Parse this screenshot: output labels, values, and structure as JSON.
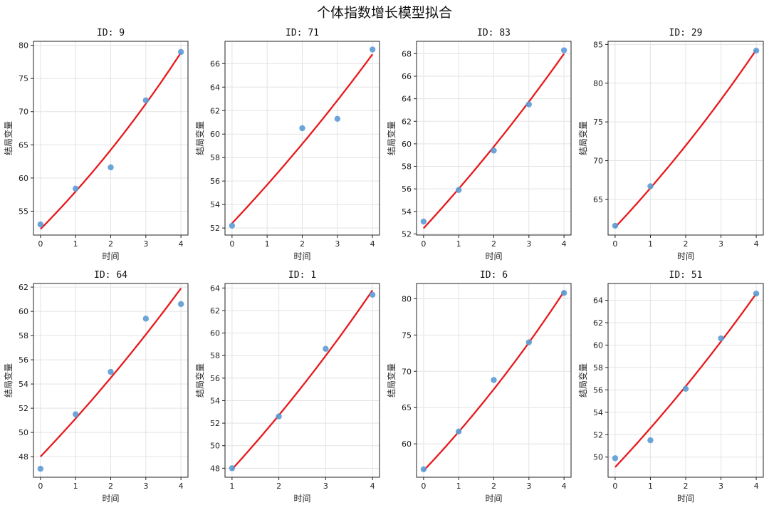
{
  "figure": {
    "title": "个体指数增长模型拟合"
  },
  "chart_data": [
    {
      "type": "scatter",
      "title": "ID: 9",
      "xlabel": "时间",
      "ylabel": "结局变量",
      "xlim": [
        -0.2,
        4.2
      ],
      "ylim": [
        51.4,
        80.6
      ],
      "xticks": [
        0,
        1,
        2,
        3,
        4
      ],
      "yticks": [
        55,
        60,
        65,
        70,
        75,
        80
      ],
      "points": {
        "x": [
          0,
          1,
          2,
          3,
          4
        ],
        "y": [
          53.0,
          58.4,
          61.6,
          71.7,
          79.0
        ]
      },
      "fit": {
        "x0": 0,
        "x1": 4,
        "y0": 52.3,
        "y1": 78.9
      }
    },
    {
      "type": "scatter",
      "title": "ID: 71",
      "xlabel": "时间",
      "ylabel": "结局变量",
      "xlim": [
        -0.2,
        4.2
      ],
      "ylim": [
        51.4,
        67.9
      ],
      "xticks": [
        0,
        1,
        2,
        3,
        4
      ],
      "yticks": [
        52,
        54,
        56,
        58,
        60,
        62,
        64,
        66
      ],
      "points": {
        "x": [
          0,
          2,
          3,
          4
        ],
        "y": [
          52.2,
          60.5,
          61.3,
          67.2
        ]
      },
      "fit": {
        "x0": 0,
        "x1": 4,
        "y0": 52.4,
        "y1": 66.8
      }
    },
    {
      "type": "scatter",
      "title": "ID: 83",
      "xlabel": "时间",
      "ylabel": "结局变量",
      "xlim": [
        -0.2,
        4.2
      ],
      "ylim": [
        51.9,
        69.1
      ],
      "xticks": [
        0,
        1,
        2,
        3,
        4
      ],
      "yticks": [
        52,
        54,
        56,
        58,
        60,
        62,
        64,
        66,
        68
      ],
      "points": {
        "x": [
          0,
          1,
          2,
          3,
          4
        ],
        "y": [
          53.1,
          55.9,
          59.4,
          63.5,
          68.3
        ]
      },
      "fit": {
        "x0": 0,
        "x1": 4,
        "y0": 52.5,
        "y1": 68.0
      }
    },
    {
      "type": "scatter",
      "title": "ID: 29",
      "xlabel": "时间",
      "ylabel": "结局变量",
      "xlim": [
        -0.2,
        4.2
      ],
      "ylim": [
        60.4,
        85.4
      ],
      "xticks": [
        0,
        1,
        2,
        3,
        4
      ],
      "yticks": [
        65,
        70,
        75,
        80,
        85
      ],
      "points": {
        "x": [
          0,
          1,
          4
        ],
        "y": [
          61.6,
          66.7,
          84.2
        ]
      },
      "fit": {
        "x0": 0,
        "x1": 4,
        "y0": 61.4,
        "y1": 84.3
      }
    },
    {
      "type": "scatter",
      "title": "ID: 64",
      "xlabel": "时间",
      "ylabel": "结局变量",
      "xlim": [
        -0.2,
        4.2
      ],
      "ylim": [
        46.3,
        62.3
      ],
      "xticks": [
        0,
        1,
        2,
        3,
        4
      ],
      "yticks": [
        48,
        50,
        52,
        54,
        56,
        58,
        60,
        62
      ],
      "points": {
        "x": [
          0,
          1,
          2,
          3,
          4
        ],
        "y": [
          47.0,
          51.5,
          55.0,
          59.4,
          60.6
        ]
      },
      "fit": {
        "x0": 0,
        "x1": 4,
        "y0": 48.0,
        "y1": 61.9
      }
    },
    {
      "type": "scatter",
      "title": "ID: 1",
      "xlabel": "时间",
      "ylabel": "结局变量",
      "xlim": [
        0.85,
        4.15
      ],
      "ylim": [
        47.2,
        64.4
      ],
      "xticks": [
        1,
        2,
        3,
        4
      ],
      "yticks": [
        48,
        50,
        52,
        54,
        56,
        58,
        60,
        62,
        64
      ],
      "points": {
        "x": [
          1,
          2,
          3,
          4
        ],
        "y": [
          48.0,
          52.6,
          58.6,
          63.4
        ]
      },
      "fit": {
        "x0": 1,
        "x1": 4,
        "y0": 47.9,
        "y1": 63.8
      }
    },
    {
      "type": "scatter",
      "title": "ID: 6",
      "xlabel": "时间",
      "ylabel": "结局变量",
      "xlim": [
        -0.2,
        4.2
      ],
      "ylim": [
        55.4,
        82.1
      ],
      "xticks": [
        0,
        1,
        2,
        3,
        4
      ],
      "yticks": [
        60,
        65,
        70,
        75,
        80
      ],
      "points": {
        "x": [
          0,
          1,
          2,
          3,
          4
        ],
        "y": [
          56.5,
          61.7,
          68.8,
          74.0,
          80.8
        ]
      },
      "fit": {
        "x0": 0,
        "x1": 4,
        "y0": 56.3,
        "y1": 81.0
      }
    },
    {
      "type": "scatter",
      "title": "ID: 51",
      "xlabel": "时间",
      "ylabel": "结局变量",
      "xlim": [
        -0.2,
        4.2
      ],
      "ylim": [
        48.2,
        65.5
      ],
      "xticks": [
        0,
        1,
        2,
        3,
        4
      ],
      "yticks": [
        50,
        52,
        54,
        56,
        58,
        60,
        62,
        64
      ],
      "points": {
        "x": [
          0,
          1,
          2,
          3,
          4
        ],
        "y": [
          49.9,
          51.5,
          56.1,
          60.6,
          64.6
        ]
      },
      "fit": {
        "x0": 0,
        "x1": 4,
        "y0": 49.1,
        "y1": 64.6
      }
    }
  ],
  "colors": {
    "points": "#5b9bd5",
    "fit": "#e8191c",
    "grid": "#e3e3e3",
    "axis": "#222222"
  }
}
